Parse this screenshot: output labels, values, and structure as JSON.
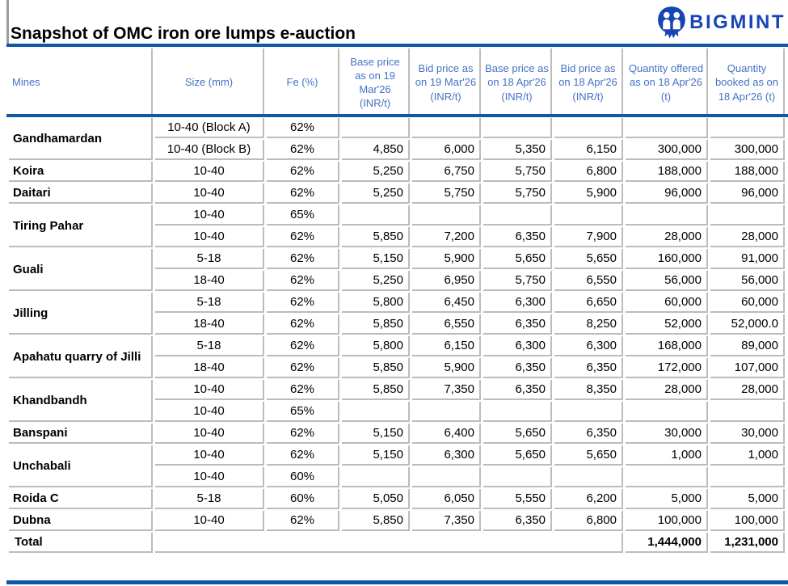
{
  "page": {
    "title": "Snapshot of OMC iron ore lumps e-auction",
    "brand": "BIGMINT"
  },
  "colors": {
    "accent_blue": "#1057A5",
    "header_text_blue": "#4472C4",
    "logo_blue": "#1746B4",
    "grid_gray": "#bcbcbc"
  },
  "table": {
    "headers": [
      "Mines",
      "Size (mm)",
      "Fe (%)",
      "Base price as on 19 Mar'26 (INR/t)",
      "Bid price as on 19 Mar'26 (INR/t)",
      "Base price as on 18 Apr'26 (INR/t)",
      "Bid price as on 18 Apr'26 (INR/t)",
      "Quantity offered as on 18 Apr'26 (t)",
      "Quantity booked as on 18 Apr'26 (t)"
    ],
    "groups": [
      {
        "mine": "Gandhamardan",
        "rows": [
          [
            "10-40 (Block A)",
            "62%",
            "",
            "",
            "",
            "",
            "",
            ""
          ],
          [
            "10-40 (Block B)",
            "62%",
            "4,850",
            "6,000",
            "5,350",
            "6,150",
            "300,000",
            "300,000"
          ]
        ]
      },
      {
        "mine": "Koira",
        "rows": [
          [
            "10-40",
            "62%",
            "5,250",
            "6,750",
            "5,750",
            "6,800",
            "188,000",
            "188,000"
          ]
        ]
      },
      {
        "mine": "Daitari",
        "rows": [
          [
            "10-40",
            "62%",
            "5,250",
            "5,750",
            "5,750",
            "5,900",
            "96,000",
            "96,000"
          ]
        ]
      },
      {
        "mine": "Tiring Pahar",
        "rows": [
          [
            "10-40",
            "65%",
            "",
            "",
            "",
            "",
            "",
            ""
          ],
          [
            "10-40",
            "62%",
            "5,850",
            "7,200",
            "6,350",
            "7,900",
            "28,000",
            "28,000"
          ]
        ]
      },
      {
        "mine": "Guali",
        "rows": [
          [
            "5-18",
            "62%",
            "5,150",
            "5,900",
            "5,650",
            "5,650",
            "160,000",
            "91,000"
          ],
          [
            "18-40",
            "62%",
            "5,250",
            "6,950",
            "5,750",
            "6,550",
            "56,000",
            "56,000"
          ]
        ]
      },
      {
        "mine": "Jilling",
        "rows": [
          [
            "5-18",
            "62%",
            "5,800",
            "6,450",
            "6,300",
            "6,650",
            "60,000",
            "60,000"
          ],
          [
            "18-40",
            "62%",
            "5,850",
            "6,550",
            "6,350",
            "8,250",
            "52,000",
            "52,000.0"
          ]
        ]
      },
      {
        "mine": "Apahatu quarry of Jilli",
        "rows": [
          [
            "5-18",
            "62%",
            "5,800",
            "6,150",
            "6,300",
            "6,300",
            "168,000",
            "89,000"
          ],
          [
            "18-40",
            "62%",
            "5,850",
            "5,900",
            "6,350",
            "6,350",
            "172,000",
            "107,000"
          ]
        ]
      },
      {
        "mine": "Khandbandh",
        "rows": [
          [
            "10-40",
            "62%",
            "5,850",
            "7,350",
            "6,350",
            "8,350",
            "28,000",
            "28,000"
          ],
          [
            "10-40",
            "65%",
            "",
            "",
            "",
            "",
            "",
            ""
          ]
        ]
      },
      {
        "mine": "Banspani",
        "rows": [
          [
            "10-40",
            "62%",
            "5,150",
            "6,400",
            "5,650",
            "6,350",
            "30,000",
            "30,000"
          ]
        ]
      },
      {
        "mine": "Unchabali",
        "rows": [
          [
            "10-40",
            "62%",
            "5,150",
            "6,300",
            "5,650",
            "5,650",
            "1,000",
            "1,000"
          ],
          [
            "10-40",
            "60%",
            "",
            "",
            "",
            "",
            "",
            ""
          ]
        ]
      },
      {
        "mine": "Roida C",
        "rows": [
          [
            "5-18",
            "60%",
            "5,050",
            "6,050",
            "5,550",
            "6,200",
            "5,000",
            "5,000"
          ]
        ]
      },
      {
        "mine": "Dubna",
        "rows": [
          [
            "10-40",
            "62%",
            "5,850",
            "7,350",
            "6,350",
            "6,800",
            "100,000",
            "100,000"
          ]
        ]
      }
    ],
    "total": {
      "label": "Total",
      "quantity_offered": "1,444,000",
      "quantity_booked": "1,231,000"
    }
  }
}
